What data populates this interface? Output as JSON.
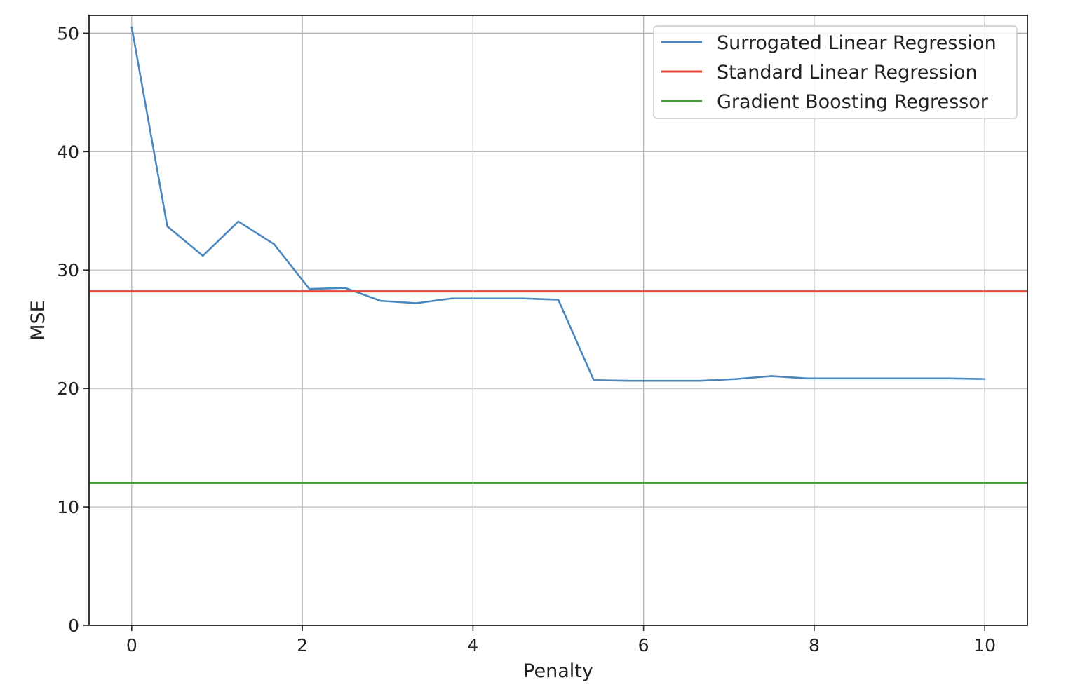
{
  "chart_data": {
    "type": "line",
    "title": "",
    "xlabel": "Penalty",
    "ylabel": "MSE",
    "xlim": [
      -0.5,
      10.5
    ],
    "ylim": [
      0,
      51.5
    ],
    "xticks": [
      0,
      2,
      4,
      6,
      8,
      10
    ],
    "yticks": [
      0,
      10,
      20,
      30,
      40,
      50
    ],
    "grid": true,
    "legend_position": "top-right",
    "series": [
      {
        "name": "Surrogated Linear Regression",
        "kind": "line",
        "color": "#4a86c0",
        "x": [
          0,
          0.4167,
          0.8333,
          1.25,
          1.6667,
          2.0833,
          2.5,
          2.9167,
          3.3333,
          3.75,
          4.1667,
          4.5833,
          5.0,
          5.4167,
          5.8333,
          6.25,
          6.6667,
          7.0833,
          7.5,
          7.9167,
          8.3333,
          8.75,
          9.1667,
          9.5833,
          10.0
        ],
        "values": [
          50.5,
          33.7,
          31.2,
          34.1,
          32.2,
          28.4,
          28.5,
          27.4,
          27.2,
          27.6,
          27.6,
          27.6,
          27.5,
          20.7,
          20.65,
          20.65,
          20.65,
          20.8,
          21.05,
          20.85,
          20.85,
          20.85,
          20.85,
          20.85,
          20.8
        ]
      },
      {
        "name": "Standard Linear Regression",
        "kind": "hline",
        "color": "#e8453c",
        "value": 28.2
      },
      {
        "name": "Gradient Boosting Regressor",
        "kind": "hline",
        "color": "#4a9a3e",
        "value": 12.0
      }
    ]
  }
}
